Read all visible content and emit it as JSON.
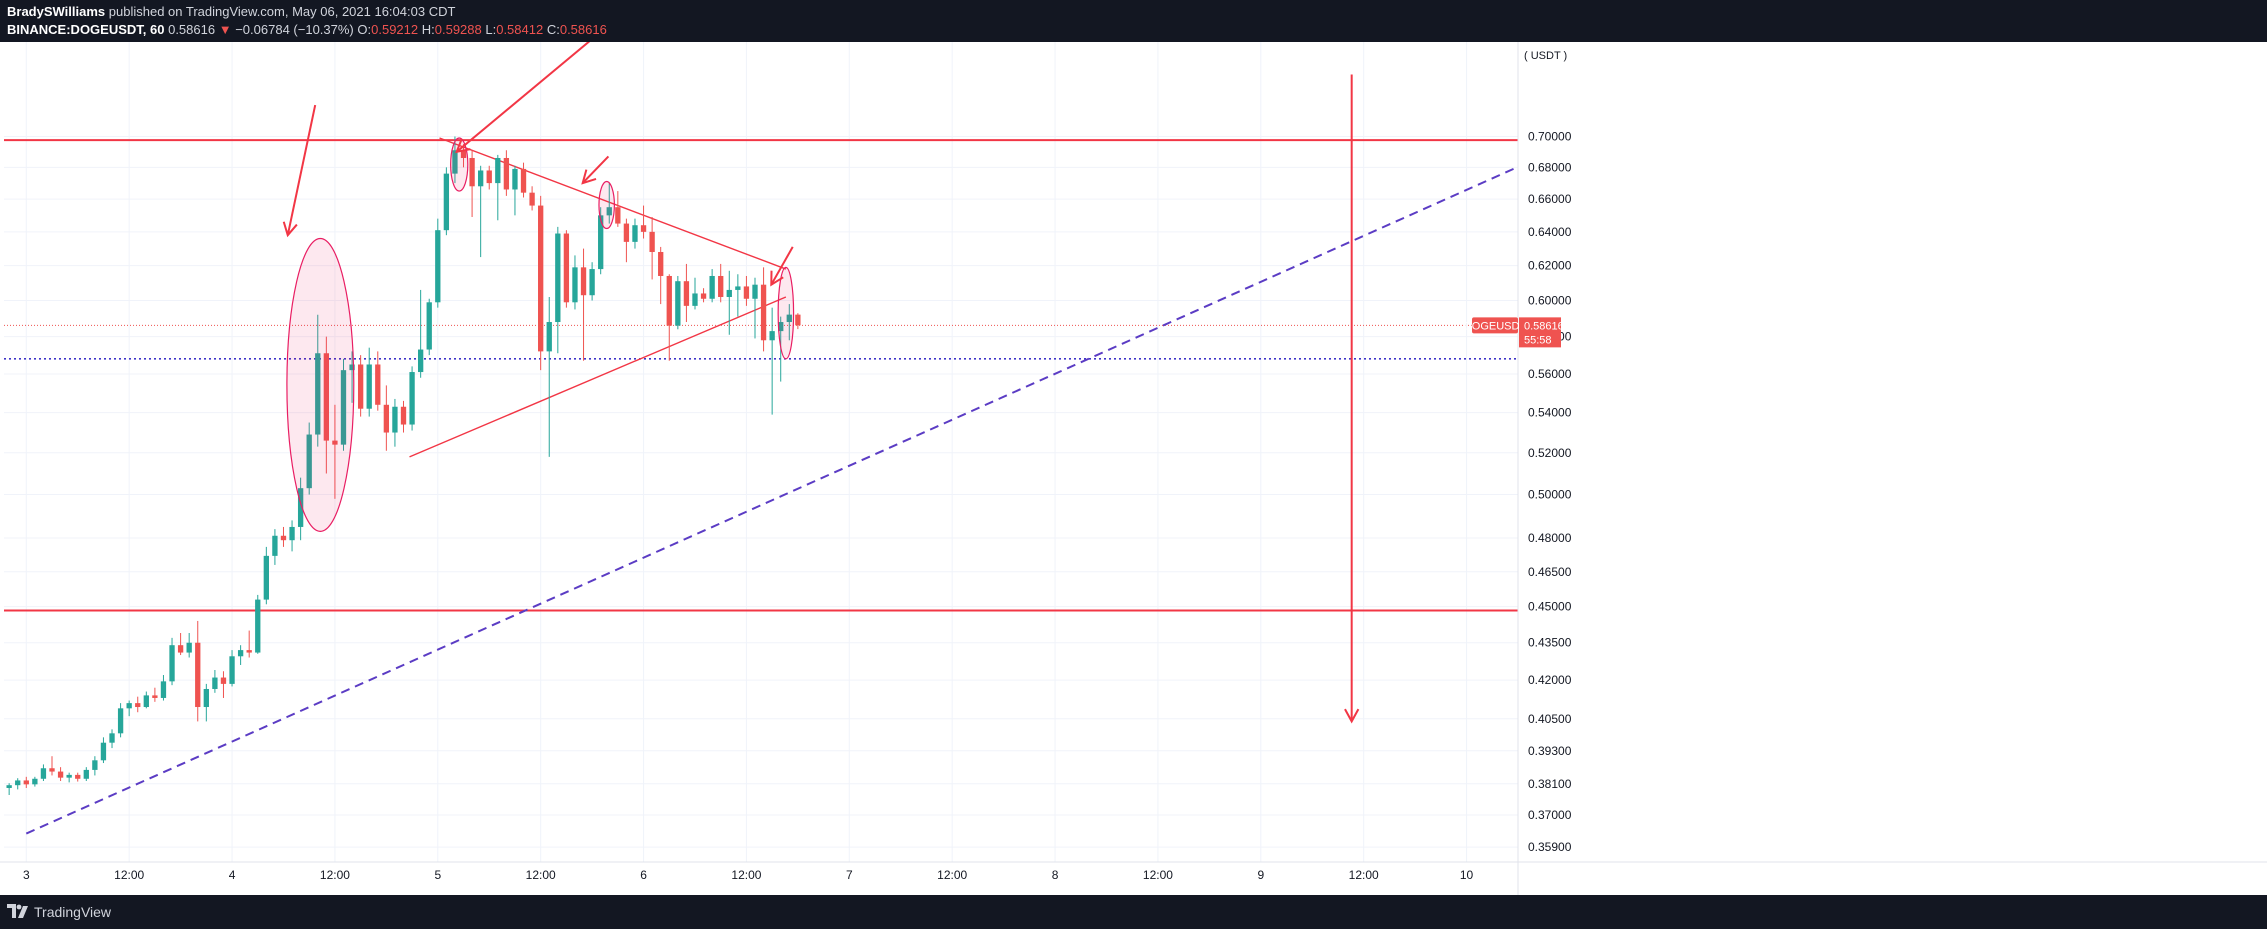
{
  "header": {
    "author": "BradySWilliams",
    "published_on": " published on TradingView.com, May 06, 2021 16:04:03 CDT",
    "symbol": "BINANCE:DOGEUSDT, 60",
    "last_price": "0.58616",
    "change": "−0.06784 (−10.37%)",
    "ohlc": [
      {
        "label": "O:",
        "value": "0.59212"
      },
      {
        "label": "H:",
        "value": "0.59288"
      },
      {
        "label": "L:",
        "value": "0.58412"
      },
      {
        "label": "C:",
        "value": "0.58616"
      }
    ],
    "down_icon": "triangle-down-icon"
  },
  "footer": {
    "brand": "TradingView",
    "logo_icon": "tradingview-logo-icon"
  },
  "colors": {
    "up": "#26a69a",
    "down": "#ef5350",
    "annotation": "#f23645",
    "ellipse": "#e91e63",
    "dashed": "#5b3cc4",
    "dotted": "#3f33c8"
  },
  "chart_data": {
    "type": "candlestick",
    "symbol": "DOGEUSDT",
    "interval": "60",
    "currency_label": "( USDT )",
    "scale": "log",
    "y_range": [
      0.354,
      0.765
    ],
    "y_ticks": [
      "0.70000",
      "0.68000",
      "0.66000",
      "0.64000",
      "0.62000",
      "0.60000",
      "0.58000",
      "0.56000",
      "0.54000",
      "0.52000",
      "0.50000",
      "0.48000",
      "0.46500",
      "0.45000",
      "0.43500",
      "0.42000",
      "0.40500",
      "0.39300",
      "0.38100",
      "0.37000",
      "0.35900"
    ],
    "x_ticks": [
      {
        "label": "3",
        "t": 0
      },
      {
        "label": "12:00",
        "t": 12
      },
      {
        "label": "4",
        "t": 24
      },
      {
        "label": "12:00",
        "t": 36
      },
      {
        "label": "5",
        "t": 48
      },
      {
        "label": "12:00",
        "t": 60
      },
      {
        "label": "6",
        "t": 72
      },
      {
        "label": "12:00",
        "t": 84
      },
      {
        "label": "7",
        "t": 96
      },
      {
        "label": "12:00",
        "t": 108
      },
      {
        "label": "8",
        "t": 120
      },
      {
        "label": "12:00",
        "t": 132
      },
      {
        "label": "9",
        "t": 144
      },
      {
        "label": "12:00",
        "t": 156
      },
      {
        "label": "10",
        "t": 168
      }
    ],
    "x_range": [
      -2.6,
      174
    ],
    "candles": [
      [
        -2,
        0.3795,
        0.3812,
        0.377,
        0.3805
      ],
      [
        -1,
        0.3805,
        0.383,
        0.379,
        0.3822
      ],
      [
        0,
        0.3822,
        0.3835,
        0.3795,
        0.3808
      ],
      [
        1,
        0.3808,
        0.3835,
        0.38,
        0.3828
      ],
      [
        2,
        0.3828,
        0.388,
        0.382,
        0.3866
      ],
      [
        3,
        0.3866,
        0.391,
        0.384,
        0.3854
      ],
      [
        4,
        0.3854,
        0.387,
        0.382,
        0.3832
      ],
      [
        5,
        0.3832,
        0.385,
        0.3815,
        0.3842
      ],
      [
        6,
        0.3842,
        0.385,
        0.3818,
        0.3828
      ],
      [
        7,
        0.3828,
        0.387,
        0.382,
        0.386
      ],
      [
        8,
        0.386,
        0.391,
        0.384,
        0.3895
      ],
      [
        9,
        0.3895,
        0.398,
        0.3885,
        0.396
      ],
      [
        10,
        0.396,
        0.401,
        0.394,
        0.3995
      ],
      [
        11,
        0.3995,
        0.411,
        0.398,
        0.409
      ],
      [
        12,
        0.409,
        0.412,
        0.406,
        0.411
      ],
      [
        13,
        0.411,
        0.4135,
        0.4075,
        0.4095
      ],
      [
        14,
        0.4095,
        0.4155,
        0.409,
        0.414
      ],
      [
        15,
        0.414,
        0.417,
        0.4115,
        0.413
      ],
      [
        16,
        0.413,
        0.422,
        0.412,
        0.4195
      ],
      [
        17,
        0.4195,
        0.437,
        0.418,
        0.434
      ],
      [
        18,
        0.434,
        0.439,
        0.43,
        0.431
      ],
      [
        19,
        0.431,
        0.439,
        0.429,
        0.435
      ],
      [
        20,
        0.435,
        0.444,
        0.404,
        0.4095
      ],
      [
        21,
        0.4095,
        0.4185,
        0.404,
        0.4165
      ],
      [
        22,
        0.4165,
        0.424,
        0.415,
        0.421
      ],
      [
        23,
        0.421,
        0.4235,
        0.413,
        0.4185
      ],
      [
        24,
        0.4185,
        0.432,
        0.4175,
        0.4295
      ],
      [
        25,
        0.4295,
        0.434,
        0.426,
        0.432
      ],
      [
        26,
        0.432,
        0.44,
        0.429,
        0.431
      ],
      [
        27,
        0.431,
        0.455,
        0.4305,
        0.453
      ],
      [
        28,
        0.453,
        0.476,
        0.451,
        0.472
      ],
      [
        29,
        0.472,
        0.484,
        0.468,
        0.481
      ],
      [
        30,
        0.481,
        0.485,
        0.476,
        0.479
      ],
      [
        31,
        0.479,
        0.488,
        0.474,
        0.485
      ],
      [
        32,
        0.485,
        0.508,
        0.479,
        0.503
      ],
      [
        33,
        0.503,
        0.535,
        0.5,
        0.529
      ],
      [
        34,
        0.529,
        0.592,
        0.523,
        0.571
      ],
      [
        35,
        0.571,
        0.58,
        0.51,
        0.526
      ],
      [
        36,
        0.526,
        0.544,
        0.498,
        0.524
      ],
      [
        37,
        0.524,
        0.568,
        0.521,
        0.562
      ],
      [
        38,
        0.562,
        0.572,
        0.545,
        0.565
      ],
      [
        39,
        0.565,
        0.57,
        0.538,
        0.542
      ],
      [
        40,
        0.542,
        0.574,
        0.538,
        0.565
      ],
      [
        41,
        0.565,
        0.572,
        0.541,
        0.544
      ],
      [
        42,
        0.544,
        0.554,
        0.521,
        0.53
      ],
      [
        43,
        0.53,
        0.547,
        0.523,
        0.543
      ],
      [
        44,
        0.543,
        0.546,
        0.53,
        0.534
      ],
      [
        45,
        0.534,
        0.564,
        0.531,
        0.561
      ],
      [
        46,
        0.561,
        0.606,
        0.558,
        0.573
      ],
      [
        47,
        0.573,
        0.601,
        0.57,
        0.599
      ],
      [
        48,
        0.599,
        0.648,
        0.596,
        0.641
      ],
      [
        49,
        0.641,
        0.68,
        0.638,
        0.676
      ],
      [
        50,
        0.676,
        0.7,
        0.67,
        0.691
      ],
      [
        51,
        0.691,
        0.695,
        0.68,
        0.686
      ],
      [
        52,
        0.686,
        0.691,
        0.649,
        0.668
      ],
      [
        53,
        0.668,
        0.681,
        0.625,
        0.678
      ],
      [
        54,
        0.678,
        0.681,
        0.666,
        0.67
      ],
      [
        55,
        0.67,
        0.688,
        0.647,
        0.686
      ],
      [
        56,
        0.686,
        0.691,
        0.662,
        0.666
      ],
      [
        57,
        0.666,
        0.681,
        0.65,
        0.679
      ],
      [
        58,
        0.679,
        0.683,
        0.661,
        0.664
      ],
      [
        59,
        0.664,
        0.668,
        0.653,
        0.656
      ],
      [
        60,
        0.656,
        0.662,
        0.562,
        0.572
      ],
      [
        61,
        0.572,
        0.602,
        0.518,
        0.588
      ],
      [
        62,
        0.588,
        0.643,
        0.571,
        0.639
      ],
      [
        63,
        0.639,
        0.641,
        0.596,
        0.599
      ],
      [
        64,
        0.599,
        0.626,
        0.595,
        0.619
      ],
      [
        65,
        0.619,
        0.63,
        0.567,
        0.603
      ],
      [
        66,
        0.603,
        0.622,
        0.6,
        0.618
      ],
      [
        67,
        0.618,
        0.655,
        0.615,
        0.65
      ],
      [
        68,
        0.65,
        0.67,
        0.645,
        0.655
      ],
      [
        69,
        0.655,
        0.665,
        0.643,
        0.645
      ],
      [
        70,
        0.645,
        0.648,
        0.622,
        0.634
      ],
      [
        71,
        0.634,
        0.648,
        0.63,
        0.644
      ],
      [
        72,
        0.644,
        0.656,
        0.636,
        0.64
      ],
      [
        73,
        0.64,
        0.649,
        0.612,
        0.628
      ],
      [
        74,
        0.628,
        0.631,
        0.598,
        0.614
      ],
      [
        75,
        0.614,
        0.615,
        0.567,
        0.586
      ],
      [
        76,
        0.586,
        0.614,
        0.584,
        0.611
      ],
      [
        77,
        0.611,
        0.621,
        0.588,
        0.597
      ],
      [
        78,
        0.597,
        0.613,
        0.595,
        0.604
      ],
      [
        79,
        0.604,
        0.607,
        0.599,
        0.601
      ],
      [
        80,
        0.601,
        0.618,
        0.599,
        0.614
      ],
      [
        81,
        0.614,
        0.621,
        0.599,
        0.602
      ],
      [
        82,
        0.602,
        0.617,
        0.581,
        0.606
      ],
      [
        83,
        0.606,
        0.615,
        0.591,
        0.608
      ],
      [
        84,
        0.608,
        0.614,
        0.597,
        0.601
      ],
      [
        85,
        0.601,
        0.613,
        0.579,
        0.609
      ],
      [
        86,
        0.609,
        0.619,
        0.572,
        0.578
      ],
      [
        87,
        0.578,
        0.596,
        0.539,
        0.583
      ],
      [
        88,
        0.583,
        0.591,
        0.556,
        0.588
      ],
      [
        89,
        0.588,
        0.598,
        0.578,
        0.5921
      ],
      [
        90,
        0.5921,
        0.5929,
        0.5841,
        0.5862
      ]
    ],
    "price_line": 0.58616,
    "price_label": "0.58616",
    "symbol_badge": "DOGEUSDT",
    "countdown": "55:58",
    "horizontal_lines": [
      0.6976,
      0.4484
    ],
    "blue_dotted_line": 0.568,
    "trendlines": [
      {
        "from": [
          0,
          0.3636
        ],
        "to": [
          173.6,
          0.6793
        ],
        "style": "dashed",
        "color": "#5b3cc4"
      },
      {
        "from": [
          48.2,
          0.699
        ],
        "to": [
          88.6,
          0.618
        ],
        "style": "solid",
        "color": "#f23645"
      },
      {
        "from": [
          44.7,
          0.518
        ],
        "to": [
          88.6,
          0.602
        ],
        "style": "solid",
        "color": "#f23645"
      }
    ],
    "annotation_arrows": [
      {
        "from": [
          33.7,
          0.721
        ],
        "to": [
          30.5,
          0.638
        ]
      },
      {
        "from": [
          70.0,
          0.788
        ],
        "to": [
          50.2,
          0.69
        ]
      },
      {
        "from": [
          67.9,
          0.687
        ],
        "to": [
          64.9,
          0.67
        ]
      },
      {
        "from": [
          89.4,
          0.631
        ],
        "to": [
          86.9,
          0.609
        ]
      },
      {
        "from": [
          154.6,
          0.742
        ],
        "to": [
          154.6,
          0.404
        ],
        "vertical": true
      }
    ],
    "circles": [
      {
        "center": [
          34.3,
          0.543
        ],
        "rx_hours": 3.9,
        "y_top": 0.636,
        "y_bottom": 0.483
      },
      {
        "center": [
          50.5,
          0.681
        ],
        "rx_hours": 1.0,
        "y_top": 0.699,
        "y_bottom": 0.665
      },
      {
        "center": [
          67.7,
          0.656
        ],
        "rx_hours": 0.9,
        "y_top": 0.671,
        "y_bottom": 0.642
      },
      {
        "center": [
          88.6,
          0.59
        ],
        "rx_hours": 0.9,
        "y_top": 0.619,
        "y_bottom": 0.568
      }
    ]
  }
}
